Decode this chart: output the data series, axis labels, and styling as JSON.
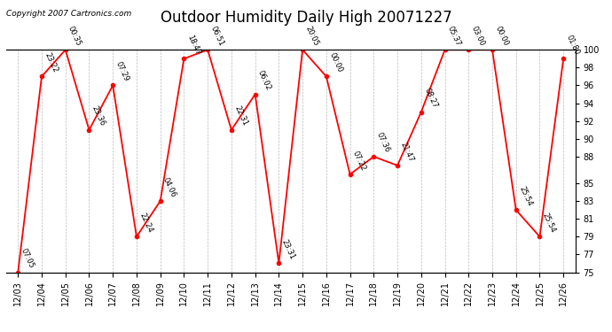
{
  "title": "Outdoor Humidity Daily High 20071227",
  "copyright": "Copyright 2007 Cartronics.com",
  "ylim": [
    75,
    100
  ],
  "dates": [
    "12/03",
    "12/04",
    "12/05",
    "12/06",
    "12/07",
    "12/08",
    "12/09",
    "12/10",
    "12/11",
    "12/12",
    "12/13",
    "12/14",
    "12/15",
    "12/16",
    "12/17",
    "12/18",
    "12/19",
    "12/20",
    "12/21",
    "12/22",
    "12/23",
    "12/24",
    "12/25",
    "12/26"
  ],
  "values": [
    75,
    97,
    100,
    91,
    96,
    79,
    83,
    99,
    100,
    91,
    95,
    76,
    100,
    97,
    86,
    88,
    87,
    93,
    100,
    100,
    100,
    82,
    79,
    99
  ],
  "labels": [
    "07:05",
    "23:22",
    "00:35",
    "23:36",
    "07:29",
    "22:24",
    "04:06",
    "18:47",
    "06:51",
    "22:31",
    "06:02",
    "23:31",
    "20:05",
    "00:00",
    "07:22",
    "07:36",
    "21:47",
    "08:27",
    "05:37",
    "03:00",
    "00:00",
    "25:54",
    "25:54",
    "01:80"
  ],
  "yticks_right": [
    75,
    77,
    79,
    81,
    83,
    85,
    88,
    90,
    92,
    94,
    96,
    98,
    100
  ],
  "line_color": "#ff0000",
  "marker_color": "#ff0000",
  "bg_color": "#ffffff",
  "grid_color": "#bbbbbb",
  "title_fontsize": 12,
  "label_fontsize": 6,
  "tick_fontsize": 7,
  "copyright_fontsize": 6.5
}
